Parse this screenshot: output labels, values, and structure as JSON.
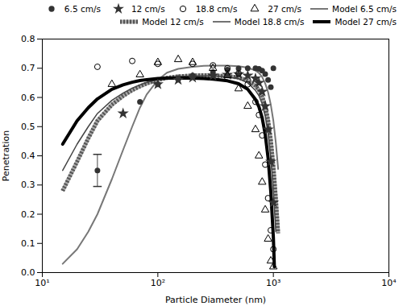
{
  "chart_data": {
    "type": "line",
    "xlabel": "Particle Diameter (nm)",
    "ylabel": "Penetration",
    "log": "x",
    "xlim": [
      10,
      10000
    ],
    "ylim": [
      0,
      0.8
    ],
    "xticks": [
      {
        "value": 10,
        "label": "10¹"
      },
      {
        "value": 100,
        "label": "10²"
      },
      {
        "value": 1000,
        "label": "10³"
      },
      {
        "value": 10000,
        "label": "10⁴"
      }
    ],
    "yticks": [
      {
        "value": 0,
        "label": "0.0"
      },
      0.1,
      0.2,
      0.3,
      0.4,
      0.5,
      0.6,
      0.7,
      0.8
    ],
    "grid": false,
    "legend": "upper right",
    "series": [
      {
        "name": "6.5 cm/s",
        "type": "scatter",
        "marker": "circle",
        "color": "#333333",
        "x": [
          30,
          70,
          100,
          150,
          200,
          300,
          400,
          500,
          600,
          700,
          750,
          800,
          850,
          900,
          950,
          1000
        ],
        "values": [
          0.35,
          0.585,
          0.645,
          0.665,
          0.675,
          0.687,
          0.695,
          0.699,
          0.7,
          0.7,
          0.698,
          0.692,
          0.68,
          0.66,
          0.635,
          0.7
        ],
        "yerr_low": [
          0.055,
          0.0,
          0.0,
          0.0,
          0.0,
          0.0,
          0.0,
          0.0,
          0.0,
          0.0,
          0.0,
          0.0,
          0.0,
          0.0,
          0.0,
          0.0
        ],
        "yerr_high": [
          0.055,
          0.0,
          0.0,
          0.0,
          0.0,
          0.0,
          0.0,
          0.0,
          0.0,
          0.0,
          0.0,
          0.0,
          0.0,
          0.0,
          0.0,
          0.0
        ]
      },
      {
        "name": "12 cm/s",
        "type": "scatter",
        "marker": "star",
        "color": "#333333",
        "x": [
          50,
          100,
          150,
          200,
          300,
          400,
          500,
          600,
          700,
          750,
          800,
          850,
          900,
          950,
          1000
        ],
        "values": [
          0.545,
          0.645,
          0.66,
          0.668,
          0.675,
          0.678,
          0.68,
          0.675,
          0.665,
          0.65,
          0.62,
          0.57,
          0.49,
          0.38,
          0.24
        ]
      },
      {
        "name": "18.8 cm/s",
        "type": "scatter",
        "marker": "circle-open",
        "color": "#000000",
        "x": [
          30,
          60,
          100,
          200,
          300,
          400,
          500,
          600,
          700,
          750,
          800,
          850,
          900,
          950,
          1000
        ],
        "values": [
          0.705,
          0.725,
          0.715,
          0.715,
          0.71,
          0.7,
          0.682,
          0.645,
          0.585,
          0.54,
          0.47,
          0.37,
          0.255,
          0.145,
          0.08
        ]
      },
      {
        "name": "27 cm/s",
        "type": "scatter",
        "marker": "triangle-open",
        "color": "#000000",
        "x": [
          40,
          70,
          100,
          150,
          200,
          300,
          400,
          500,
          600,
          700,
          750,
          800,
          850,
          900,
          950,
          1000
        ],
        "values": [
          0.645,
          0.678,
          0.72,
          0.73,
          0.72,
          0.7,
          0.675,
          0.63,
          0.57,
          0.49,
          0.4,
          0.31,
          0.215,
          0.115,
          0.04,
          0.02
        ]
      },
      {
        "name": "Model 6.5 cm/s",
        "type": "line",
        "line_style": "solid",
        "color": "#777777",
        "x": [
          15,
          20,
          25,
          30,
          40,
          50,
          60,
          70,
          80,
          100,
          120,
          150,
          200,
          250,
          300,
          400,
          500,
          600,
          700,
          750,
          800,
          850,
          900,
          950,
          1000,
          1050,
          1100
        ],
        "values": [
          0.03,
          0.08,
          0.14,
          0.2,
          0.32,
          0.42,
          0.5,
          0.565,
          0.61,
          0.66,
          0.685,
          0.698,
          0.705,
          0.708,
          0.709,
          0.709,
          0.707,
          0.702,
          0.692,
          0.684,
          0.67,
          0.648,
          0.618,
          0.575,
          0.52,
          0.445,
          0.355
        ]
      },
      {
        "name": "Model 12 cm/s",
        "type": "line",
        "line_style": "hatched",
        "color": "#aaaaaa",
        "x": [
          15,
          20,
          25,
          30,
          40,
          50,
          60,
          70,
          80,
          100,
          120,
          150,
          200,
          250,
          300,
          400,
          500,
          600,
          700,
          750,
          800,
          850,
          900,
          950,
          1000,
          1050,
          1100
        ],
        "values": [
          0.28,
          0.38,
          0.46,
          0.52,
          0.575,
          0.605,
          0.625,
          0.638,
          0.648,
          0.66,
          0.667,
          0.672,
          0.675,
          0.676,
          0.675,
          0.673,
          0.668,
          0.658,
          0.64,
          0.626,
          0.604,
          0.57,
          0.522,
          0.455,
          0.364,
          0.255,
          0.135
        ]
      },
      {
        "name": "Model 18.8 cm/s",
        "type": "line",
        "line_style": "solid",
        "color": "#444444",
        "x": [
          15,
          20,
          25,
          30,
          40,
          50,
          60,
          70,
          80,
          100,
          120,
          150,
          200,
          250,
          300,
          400,
          500,
          600,
          700,
          750,
          800,
          850,
          900,
          950,
          1000,
          1050
        ],
        "values": [
          0.35,
          0.44,
          0.5,
          0.545,
          0.59,
          0.615,
          0.632,
          0.643,
          0.651,
          0.661,
          0.667,
          0.671,
          0.674,
          0.674,
          0.674,
          0.671,
          0.664,
          0.65,
          0.624,
          0.606,
          0.578,
          0.536,
          0.476,
          0.39,
          0.278,
          0.14
        ]
      },
      {
        "name": "Model 27 cm/s",
        "type": "line",
        "line_style": "solid",
        "color": "#000000",
        "x": [
          15,
          20,
          25,
          30,
          40,
          50,
          60,
          70,
          80,
          100,
          120,
          150,
          200,
          250,
          300,
          400,
          500,
          600,
          700,
          750,
          800,
          850,
          900,
          950,
          1000,
          1020
        ],
        "values": [
          0.44,
          0.52,
          0.565,
          0.595,
          0.628,
          0.643,
          0.652,
          0.658,
          0.661,
          0.665,
          0.666,
          0.667,
          0.666,
          0.665,
          0.663,
          0.657,
          0.647,
          0.628,
          0.593,
          0.568,
          0.53,
          0.474,
          0.393,
          0.278,
          0.12,
          0.02
        ]
      }
    ]
  }
}
